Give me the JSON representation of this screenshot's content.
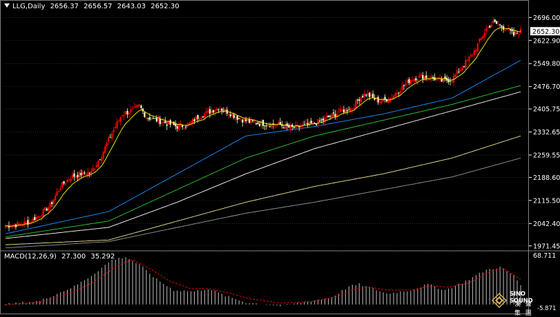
{
  "header": {
    "symbol": "LLG,Daily",
    "ohlc": [
      "2656.37",
      "2656.57",
      "2643.03",
      "2652.30"
    ]
  },
  "macd_header": {
    "label": "MACD(12,26,9)",
    "macd": "27.300",
    "signal": "35.292"
  },
  "price_axis": {
    "ticks": [
      "2696.00",
      "2622.90",
      "2549.80",
      "2476.70",
      "2405.75",
      "2332.65",
      "2259.55",
      "2188.60",
      "2115.50",
      "2042.40",
      "1971.45"
    ],
    "current_price": "2652.30"
  },
  "macd_axis": {
    "top": "68.711",
    "bottom": "-5.871"
  },
  "watermark": {
    "brand": "SINO SOUND",
    "sub": "漢 聲 集 團"
  },
  "colors": {
    "background": "#000000",
    "grid": "#4a4a4a",
    "up_candle": "#ff0000",
    "down_candle": "#ffffcc",
    "ma_fast": "#ffff00",
    "ma_blue": "#1e90ff",
    "ma_green": "#32cd32",
    "ma_white": "#ffffff",
    "ma_khaki": "#f0e68c",
    "ma_gray": "#999999",
    "macd_hist": "#c0c0c0",
    "macd_signal": "#ff0000"
  },
  "chart_data": {
    "type": "line",
    "title": "LLG,Daily",
    "ylim": [
      1960,
      2712
    ],
    "note_style": "candlestick with moving averages and MACD sub-panel",
    "candle_anchors": [
      [
        0,
        2035
      ],
      [
        8,
        2040
      ],
      [
        14,
        2048
      ],
      [
        20,
        2070
      ],
      [
        26,
        2100
      ],
      [
        32,
        2160
      ],
      [
        38,
        2190
      ],
      [
        44,
        2200
      ],
      [
        50,
        2205
      ],
      [
        56,
        2260
      ],
      [
        62,
        2330
      ],
      [
        68,
        2390
      ],
      [
        74,
        2400
      ],
      [
        78,
        2415
      ],
      [
        82,
        2380
      ],
      [
        88,
        2370
      ],
      [
        94,
        2360
      ],
      [
        100,
        2350
      ],
      [
        106,
        2355
      ],
      [
        112,
        2380
      ],
      [
        118,
        2395
      ],
      [
        124,
        2410
      ],
      [
        130,
        2395
      ],
      [
        136,
        2375
      ],
      [
        142,
        2365
      ],
      [
        148,
        2360
      ],
      [
        154,
        2358
      ],
      [
        160,
        2355
      ],
      [
        166,
        2345
      ],
      [
        172,
        2350
      ],
      [
        178,
        2358
      ],
      [
        184,
        2368
      ],
      [
        190,
        2385
      ],
      [
        196,
        2400
      ],
      [
        202,
        2410
      ],
      [
        206,
        2440
      ],
      [
        210,
        2455
      ],
      [
        214,
        2440
      ],
      [
        218,
        2430
      ],
      [
        224,
        2440
      ],
      [
        230,
        2470
      ],
      [
        236,
        2500
      ],
      [
        242,
        2510
      ],
      [
        248,
        2505
      ],
      [
        254,
        2495
      ],
      [
        260,
        2500
      ],
      [
        266,
        2540
      ],
      [
        272,
        2580
      ],
      [
        276,
        2620
      ],
      [
        280,
        2660
      ],
      [
        284,
        2680
      ],
      [
        288,
        2670
      ],
      [
        292,
        2660
      ],
      [
        296,
        2640
      ],
      [
        300,
        2652
      ]
    ],
    "moving_averages": [
      {
        "color": "ma_blue",
        "points": [
          [
            0,
            2010
          ],
          [
            60,
            2080
          ],
          [
            100,
            2200
          ],
          [
            140,
            2320
          ],
          [
            180,
            2350
          ],
          [
            220,
            2390
          ],
          [
            260,
            2440
          ],
          [
            300,
            2560
          ]
        ]
      },
      {
        "color": "ma_green",
        "points": [
          [
            0,
            2000
          ],
          [
            60,
            2050
          ],
          [
            100,
            2150
          ],
          [
            140,
            2250
          ],
          [
            180,
            2320
          ],
          [
            220,
            2370
          ],
          [
            260,
            2420
          ],
          [
            300,
            2480
          ]
        ]
      },
      {
        "color": "ma_white",
        "points": [
          [
            0,
            1995
          ],
          [
            60,
            2030
          ],
          [
            100,
            2110
          ],
          [
            140,
            2200
          ],
          [
            180,
            2280
          ],
          [
            220,
            2340
          ],
          [
            260,
            2400
          ],
          [
            300,
            2460
          ]
        ]
      },
      {
        "color": "ma_khaki",
        "points": [
          [
            0,
            1975
          ],
          [
            60,
            1990
          ],
          [
            100,
            2050
          ],
          [
            140,
            2110
          ],
          [
            180,
            2160
          ],
          [
            220,
            2200
          ],
          [
            260,
            2250
          ],
          [
            300,
            2320
          ]
        ]
      },
      {
        "color": "ma_gray",
        "points": [
          [
            0,
            1965
          ],
          [
            60,
            1985
          ],
          [
            100,
            2030
          ],
          [
            140,
            2075
          ],
          [
            180,
            2110
          ],
          [
            220,
            2150
          ],
          [
            260,
            2190
          ],
          [
            300,
            2250
          ]
        ]
      }
    ],
    "macd": {
      "ylim": [
        -5.871,
        68.711
      ],
      "histogram_anchors": [
        [
          0,
          0
        ],
        [
          20,
          5
        ],
        [
          40,
          25
        ],
        [
          50,
          40
        ],
        [
          62,
          62
        ],
        [
          70,
          66
        ],
        [
          78,
          55
        ],
        [
          88,
          35
        ],
        [
          98,
          20
        ],
        [
          110,
          18
        ],
        [
          118,
          22
        ],
        [
          128,
          12
        ],
        [
          140,
          3
        ],
        [
          160,
          -2
        ],
        [
          178,
          5
        ],
        [
          190,
          10
        ],
        [
          200,
          25
        ],
        [
          206,
          28
        ],
        [
          214,
          22
        ],
        [
          222,
          15
        ],
        [
          236,
          20
        ],
        [
          246,
          28
        ],
        [
          256,
          20
        ],
        [
          266,
          30
        ],
        [
          280,
          48
        ],
        [
          288,
          52
        ],
        [
          296,
          40
        ],
        [
          300,
          27
        ]
      ],
      "signal_anchors": [
        [
          0,
          0
        ],
        [
          20,
          3
        ],
        [
          40,
          18
        ],
        [
          52,
          32
        ],
        [
          66,
          55
        ],
        [
          74,
          62
        ],
        [
          84,
          50
        ],
        [
          96,
          32
        ],
        [
          108,
          22
        ],
        [
          118,
          22
        ],
        [
          130,
          16
        ],
        [
          142,
          8
        ],
        [
          160,
          2
        ],
        [
          178,
          4
        ],
        [
          192,
          10
        ],
        [
          204,
          22
        ],
        [
          212,
          24
        ],
        [
          222,
          20
        ],
        [
          236,
          20
        ],
        [
          248,
          26
        ],
        [
          258,
          24
        ],
        [
          270,
          30
        ],
        [
          282,
          45
        ],
        [
          290,
          50
        ],
        [
          300,
          35
        ]
      ]
    }
  }
}
